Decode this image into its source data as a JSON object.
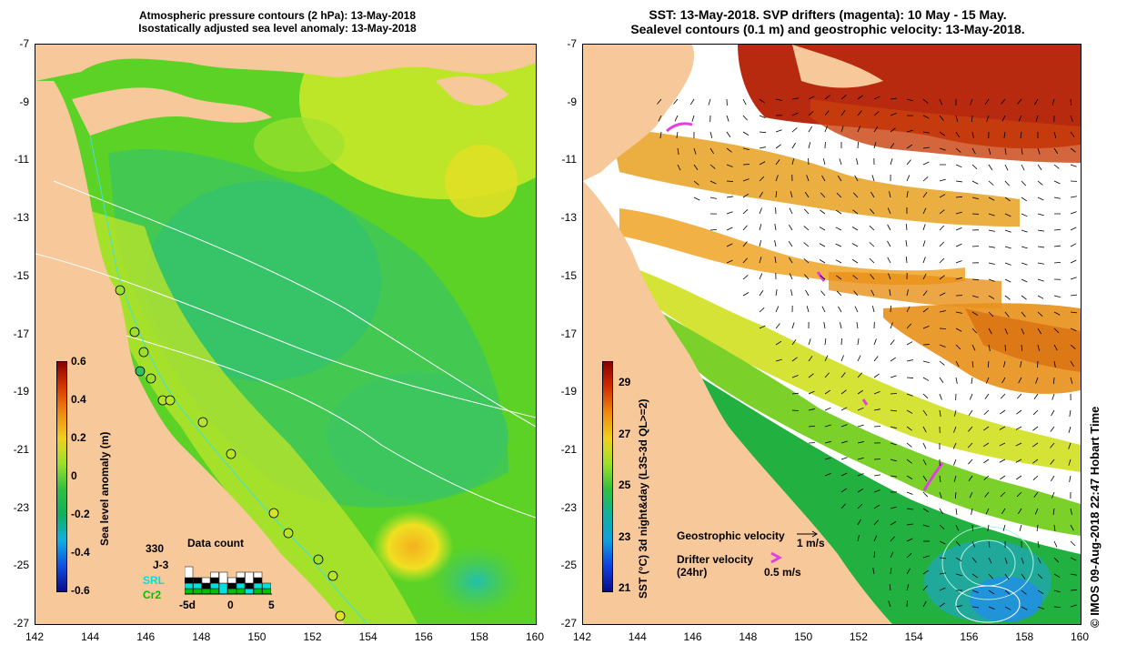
{
  "left_panel": {
    "title_line1": "Atmospheric pressure contours (2 hPa): 13-May-2018",
    "title_line2": "Isostatically adjusted sea level anomaly: 13-May-2018",
    "y_ticks": [
      "-7",
      "-9",
      "-11",
      "-13",
      "-15",
      "-17",
      "-19",
      "-21",
      "-23",
      "-25",
      "-27"
    ],
    "x_ticks": [
      "142",
      "144",
      "146",
      "148",
      "150",
      "152",
      "154",
      "156",
      "158",
      "160"
    ],
    "colorbar_label": "Sea level anomaly (m)",
    "colorbar_ticks": [
      "0.6",
      "0.4",
      "0.2",
      "0",
      "-0.2",
      "-0.4",
      "-0.6"
    ],
    "legend": {
      "title": "Data count",
      "satellites": [
        "330",
        "J-3",
        "SRL",
        "Cr2"
      ],
      "sat_colors": [
        "#ffffff",
        "#000000",
        "#00e0e0",
        "#00c000"
      ],
      "x_labels": [
        "-5d",
        "0",
        "5"
      ],
      "counts": [
        {
          "white": 2,
          "black": 1,
          "cyan": 1,
          "green": 1
        },
        {
          "white": 0,
          "black": 1,
          "cyan": 1,
          "green": 1
        },
        {
          "white": 1,
          "black": 1,
          "cyan": 0,
          "green": 1
        },
        {
          "white": 1,
          "black": 1,
          "cyan": 1,
          "green": 1
        },
        {
          "white": 2,
          "black": 0,
          "cyan": 2,
          "green": 0
        },
        {
          "white": 1,
          "black": 1,
          "cyan": 0,
          "green": 1
        },
        {
          "white": 1,
          "black": 1,
          "cyan": 1,
          "green": 1
        },
        {
          "white": 2,
          "black": 1,
          "cyan": 1,
          "green": 0
        },
        {
          "white": 1,
          "black": 1,
          "cyan": 1,
          "green": 1
        },
        {
          "white": 0,
          "black": 0,
          "cyan": 1,
          "green": 1
        }
      ]
    }
  },
  "right_panel": {
    "title_line1": "SST: 13-May-2018. SVP drifters (magenta): 10 May - 15 May.",
    "title_line2": "Sealevel contours (0.1 m) and geostrophic velocity: 13-May-2018.",
    "y_ticks": [
      "-7",
      "-9",
      "-11",
      "-13",
      "-15",
      "-17",
      "-19",
      "-21",
      "-23",
      "-25",
      "-27"
    ],
    "x_ticks": [
      "142",
      "144",
      "146",
      "148",
      "150",
      "152",
      "154",
      "156",
      "158",
      "160"
    ],
    "colorbar_label": "SST (°C) 3d night&day (L3S-3d QL>=2)",
    "colorbar_ticks": [
      "29",
      "27",
      "25",
      "23",
      "21"
    ],
    "legend_geo": "Geostrophic velocity",
    "legend_geo_scale": "1 m/s",
    "legend_drifter_line1": "Drifter velocity",
    "legend_drifter_line2": "(24hr)",
    "legend_drifter_scale": "0.5 m/s",
    "credit": "© IMOS 09-Aug-2018 22:47 Hobart Time"
  },
  "colors": {
    "land": "#f7c89a",
    "drifter": "#e040e0"
  }
}
